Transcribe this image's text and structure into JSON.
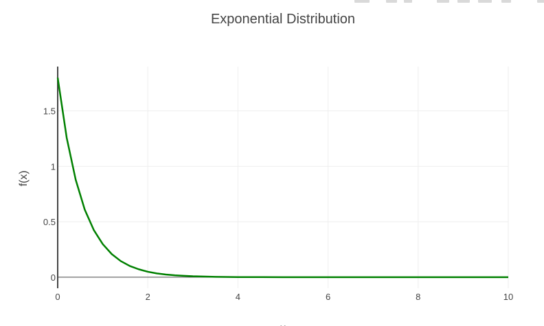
{
  "chart_data": {
    "type": "line",
    "title": "Exponential Distribution",
    "xlabel": "x",
    "ylabel": "f(x)",
    "xlim": [
      0,
      10
    ],
    "ylim": [
      -0.1,
      1.9
    ],
    "x_ticks": [
      0,
      2,
      4,
      6,
      8,
      10
    ],
    "y_ticks": [
      0,
      0.5,
      1,
      1.5
    ],
    "x_tick_labels": [
      "0",
      "2",
      "4",
      "6",
      "8",
      "10"
    ],
    "y_tick_labels": [
      "0",
      "0.5",
      "1",
      "1.5"
    ],
    "grid": true,
    "series": [
      {
        "color": "#008000",
        "x": [
          0,
          0.2,
          0.4,
          0.6,
          0.8,
          1.0,
          1.2,
          1.4,
          1.6,
          1.8,
          2.0,
          2.2,
          2.4,
          2.6,
          2.8,
          3.0,
          3.5,
          4.0,
          5.0,
          6.0,
          7.0,
          8.0,
          9.0,
          10.0
        ],
        "y": [
          1.8,
          1.257,
          0.878,
          0.61,
          0.426,
          0.298,
          0.208,
          0.145,
          0.101,
          0.071,
          0.049,
          0.034,
          0.024,
          0.017,
          0.012,
          0.008,
          0.003,
          0.001,
          0.0,
          0.0,
          0.0,
          0.0,
          0.0,
          0.0
        ]
      }
    ]
  }
}
